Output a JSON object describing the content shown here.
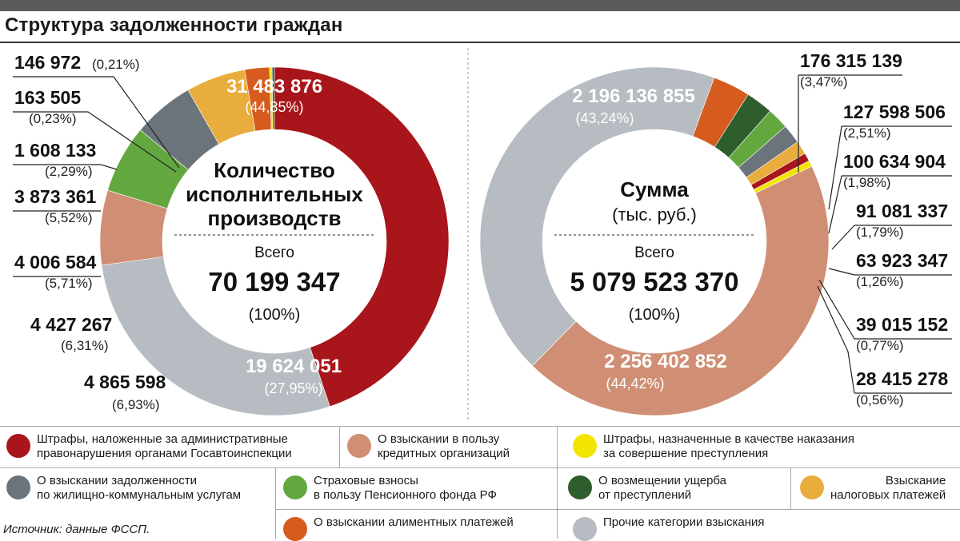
{
  "title": "Структура задолженности граждан",
  "source": "Источник: данные ФССП.",
  "categories": [
    {
      "id": "gai",
      "label": "Штрафы, наложенные за административные правонарушения органами Госавтоинспекции",
      "color": "#a8151b"
    },
    {
      "id": "credit",
      "label": "О взыскании в пользу кредитных организаций",
      "color": "#d08f74"
    },
    {
      "id": "crime",
      "label": "Штрафы, назначенные в качестве наказания за совершение преступления",
      "color": "#f2e600"
    },
    {
      "id": "zhkh",
      "label": "О взыскании задолженности по жилищно-коммунальным услугам",
      "color": "#6b737b"
    },
    {
      "id": "pfr",
      "label": "Страховые взносы в пользу Пенсионного фонда РФ",
      "color": "#62a83f"
    },
    {
      "id": "damage",
      "label": "О возмещении ущерба от преступлений",
      "color": "#2e5e2e"
    },
    {
      "id": "tax",
      "label": "Взыскание налоговых платежей",
      "color": "#e8ad3c"
    },
    {
      "id": "alim",
      "label": "О взыскании алиментных платежей",
      "color": "#d65b1e"
    },
    {
      "id": "other",
      "label": "Прочие категории взыскания",
      "color": "#b6bcc2"
    }
  ],
  "legend_lines": {
    "gai": [
      "Штрафы, наложенные за административные",
      "правонарушения органами Госавтоинспекции"
    ],
    "credit": [
      "О взыскании в пользу",
      "кредитных организаций"
    ],
    "crime": [
      "Штрафы, назначенные в качестве наказания",
      "за совершение преступления"
    ],
    "zhkh": [
      "О взыскании задолженности",
      "по жилищно-коммунальным услугам"
    ],
    "pfr": [
      "Страховые взносы",
      "в пользу Пенсионного фонда РФ"
    ],
    "damage": [
      "О возмещении ущерба",
      "от преступлений"
    ],
    "tax": [
      "Взыскание",
      "налоговых платежей"
    ],
    "alim": [
      "О взыскании алиментных платежей"
    ],
    "other": [
      "Прочие категории взыскания"
    ]
  },
  "chart_data": [
    {
      "type": "pie",
      "title_lines": [
        "Количество",
        "исполнительных",
        "производств"
      ],
      "total_label": "Всего",
      "total_value": "70 199 347",
      "total_pct": "(100%)",
      "slices": [
        {
          "category": "gai",
          "value": 31483876,
          "value_text": "31 483 876",
          "pct_text": "(44,85%)"
        },
        {
          "category": "other",
          "value": 19624051,
          "value_text": "19 624 051",
          "pct_text": "(27,95%)"
        },
        {
          "category": "credit",
          "value": 4865598,
          "value_text": "4 865 598",
          "pct_text": "(6,93%)"
        },
        {
          "category": "pfr",
          "value": 4427267,
          "value_text": "4 427 267",
          "pct_text": "(6,31%)"
        },
        {
          "category": "zhkh",
          "value": 4006584,
          "value_text": "4 006 584",
          "pct_text": "(5,71%)"
        },
        {
          "category": "tax",
          "value": 3873361,
          "value_text": "3 873 361",
          "pct_text": "(5,52%)"
        },
        {
          "category": "alim",
          "value": 1608133,
          "value_text": "1 608 133",
          "pct_text": "(2,29%)"
        },
        {
          "category": "crime",
          "value": 163505,
          "value_text": "163 505",
          "pct_text": "(0,23%)"
        },
        {
          "category": "damage",
          "value": 146972,
          "value_text": "146 972",
          "pct_text": "(0,21%)"
        }
      ]
    },
    {
      "type": "pie",
      "title_lines": [
        "Сумма"
      ],
      "subtitle": "(тыс. руб.)",
      "total_label": "Всего",
      "total_value": "5 079 523 370",
      "total_pct": "(100%)",
      "slices": [
        {
          "category": "alim",
          "value": 176315139,
          "value_text": "176 315 139",
          "pct_text": "(3,47%)"
        },
        {
          "category": "damage",
          "value": 127598506,
          "value_text": "127 598 506",
          "pct_text": "(2,51%)"
        },
        {
          "category": "pfr",
          "value": 100634904,
          "value_text": "100 634 904",
          "pct_text": "(1,98%)"
        },
        {
          "category": "zhkh",
          "value": 91081337,
          "value_text": "91 081 337",
          "pct_text": "(1,79%)"
        },
        {
          "category": "tax",
          "value": 63923347,
          "value_text": "63 923 347",
          "pct_text": "(1,26%)"
        },
        {
          "category": "gai",
          "value": 39015152,
          "value_text": "39 015 152",
          "pct_text": "(0,77%)"
        },
        {
          "category": "crime",
          "value": 28415278,
          "value_text": "28 415 278",
          "pct_text": "(0,56%)"
        },
        {
          "category": "credit",
          "value": 2256402852,
          "value_text": "2 256 402 852",
          "pct_text": "(44,42%)"
        },
        {
          "category": "other",
          "value": 2196136855,
          "value_text": "2 196 136 855",
          "pct_text": "(43,24%)"
        }
      ]
    }
  ]
}
